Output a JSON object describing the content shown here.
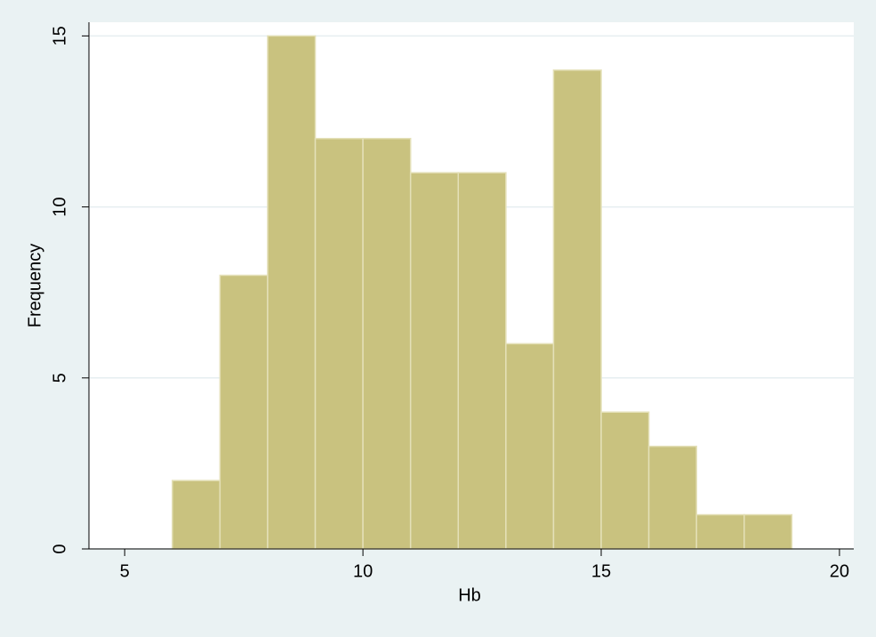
{
  "chart_data": {
    "type": "histogram",
    "x_label": "Hb",
    "y_label": "Frequency",
    "bins": [
      6,
      7,
      8,
      9,
      10,
      11,
      12,
      13,
      14,
      15,
      16,
      17,
      18,
      19
    ],
    "values": [
      2,
      8,
      15,
      12,
      12,
      11,
      11,
      6,
      14,
      4,
      3,
      1,
      1
    ],
    "color": "#c9c27f",
    "xlim": [
      4.25,
      20.3
    ],
    "xticks": [
      5,
      10,
      15,
      20
    ],
    "ylim": [
      0,
      15.4
    ],
    "yticks": [
      0,
      5,
      10,
      15
    ],
    "grid": true
  }
}
